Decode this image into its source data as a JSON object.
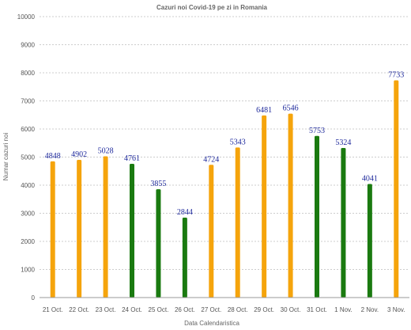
{
  "chart_data": {
    "type": "bar",
    "title": "Cazuri noi Covid-19 pe zi in Romania",
    "xlabel": "Data Calendaristica",
    "ylabel": "Numar cazuri noi",
    "ylim": [
      0,
      10000
    ],
    "yticks": [
      0,
      1000,
      2000,
      3000,
      4000,
      5000,
      6000,
      7000,
      8000,
      9000,
      10000
    ],
    "grid": true,
    "categories": [
      "21 Oct.",
      "22 Oct.",
      "23 Oct.",
      "24 Oct.",
      "25 Oct.",
      "26 Oct.",
      "27 Oct.",
      "28 Oct.",
      "29 Oct.",
      "30 Oct.",
      "31 Oct.",
      "1 Nov.",
      "2 Nov.",
      "3 Nov."
    ],
    "values": [
      4848,
      4902,
      5028,
      4761,
      3855,
      2844,
      4724,
      5343,
      6481,
      6546,
      5753,
      5324,
      4041,
      7733
    ],
    "data_labels": [
      "4848",
      "4902",
      "5028",
      "4761",
      "3855",
      "2844",
      "4724",
      "5343",
      "6481",
      "6546",
      "5753",
      "5324",
      "4041",
      "7733"
    ],
    "bar_colors": [
      "#f5a40c",
      "#f5a40c",
      "#f5a40c",
      "#1a7a10",
      "#1a7a10",
      "#1a7a10",
      "#f5a40c",
      "#f5a40c",
      "#f5a40c",
      "#f5a40c",
      "#1a7a10",
      "#1a7a10",
      "#1a7a10",
      "#f5a40c"
    ]
  }
}
